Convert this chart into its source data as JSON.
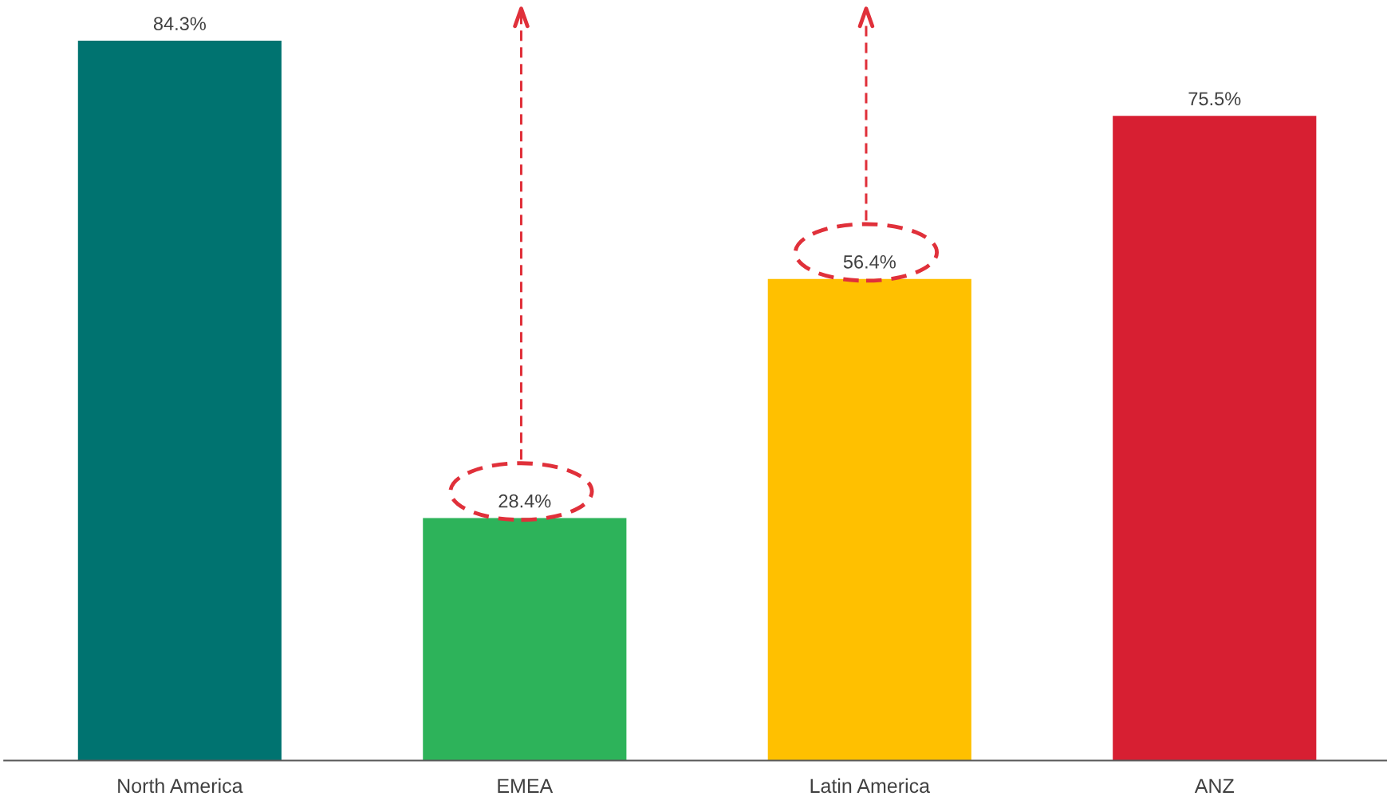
{
  "chart_data": {
    "type": "bar",
    "categories": [
      "North America",
      "EMEA",
      "Latin America",
      "ANZ"
    ],
    "values": [
      84.3,
      28.4,
      56.4,
      75.5
    ],
    "colors": [
      "#007370",
      "#2db35a",
      "#ffc000",
      "#d71f32"
    ],
    "value_labels": [
      "84.3%",
      "28.4%",
      "56.4%",
      "75.5%"
    ],
    "grid": false,
    "legend": false
  }
}
